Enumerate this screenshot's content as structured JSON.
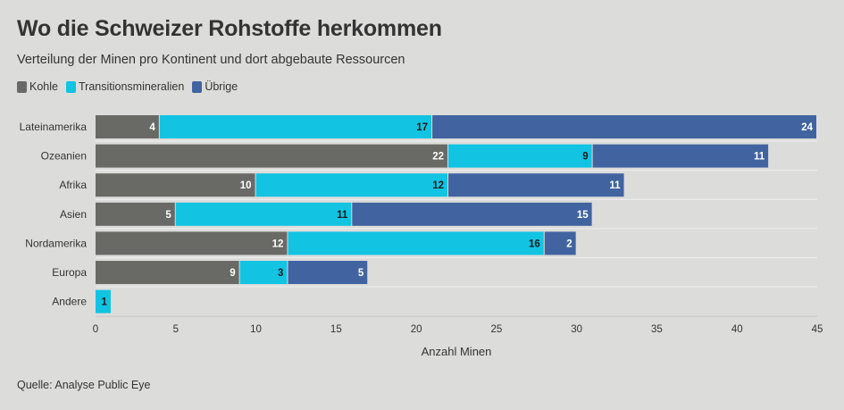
{
  "title": "Wo die Schweizer Rohstoffe herkommen",
  "subtitle": "Verteilung der Minen pro Kontinent und dort abgebaute Ressourcen",
  "source": "Quelle: Analyse Public Eye",
  "colors": {
    "kohle": "#696966",
    "transition": "#12c3e2",
    "uebrige": "#4164a0",
    "background": "#dcdcdb",
    "grid": "#f0f0ef"
  },
  "chart_data": {
    "type": "bar",
    "orientation": "horizontal",
    "stacked": true,
    "title": "Wo die Schweizer Rohstoffe herkommen",
    "subtitle": "Verteilung der Minen pro Kontinent und dort abgebaute Ressourcen",
    "xlabel": "Anzahl Minen",
    "ylabel": "",
    "xlim": [
      0,
      45
    ],
    "xticks": [
      0,
      5,
      10,
      15,
      20,
      25,
      30,
      35,
      40,
      45
    ],
    "grid": true,
    "legend_position": "top-left",
    "categories": [
      "Lateinamerika",
      "Ozeanien",
      "Afrika",
      "Asien",
      "Nordamerika",
      "Europa",
      "Andere"
    ],
    "series": [
      {
        "name": "Kohle",
        "color": "#696966",
        "values": [
          4,
          22,
          10,
          5,
          12,
          9,
          0
        ]
      },
      {
        "name": "Transitionsmineralien",
        "color": "#12c3e2",
        "values": [
          17,
          9,
          12,
          11,
          16,
          3,
          1
        ]
      },
      {
        "name": "Übrige",
        "color": "#4164a0",
        "values": [
          24,
          11,
          11,
          15,
          2,
          5,
          0
        ]
      }
    ]
  }
}
